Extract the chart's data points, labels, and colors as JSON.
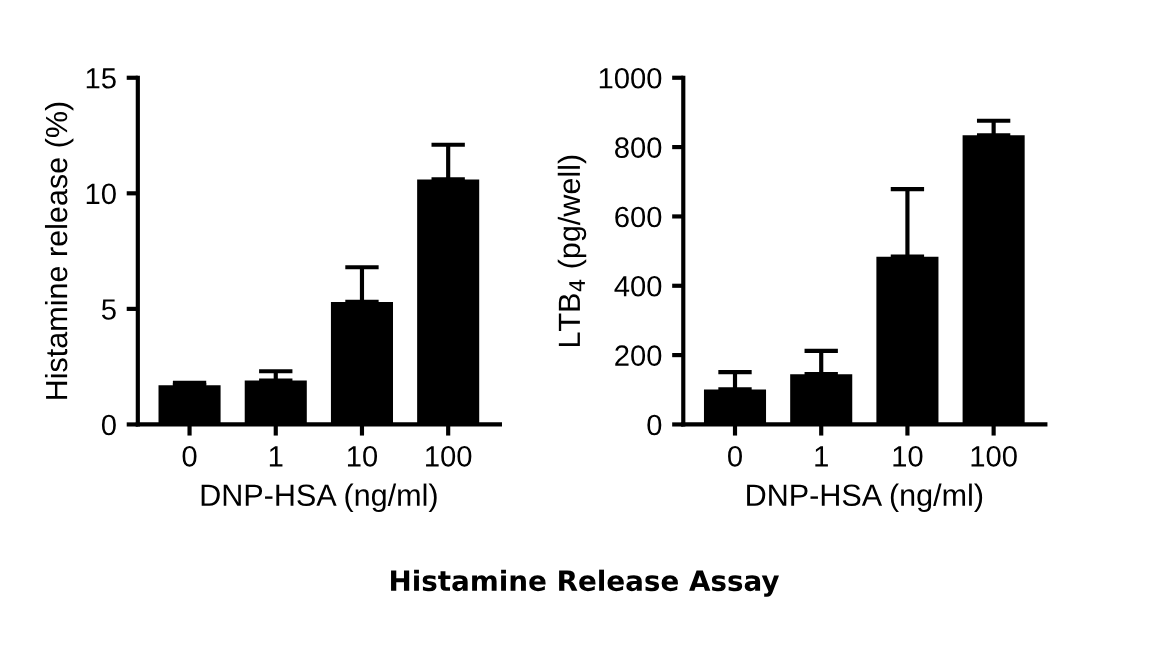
{
  "chart_data": [
    {
      "type": "bar",
      "categories": [
        "0",
        "1",
        "10",
        "100"
      ],
      "values": [
        1.7,
        1.9,
        5.3,
        10.6
      ],
      "errors": [
        [
          1.7,
          1.8
        ],
        [
          1.9,
          2.3
        ],
        [
          5.3,
          6.8
        ],
        [
          10.6,
          12.1
        ]
      ],
      "color": "#000000",
      "xlabel": "DNP-HSA (ng/ml)",
      "ylabel": "Histamine release (%)",
      "ylim": [
        0,
        15
      ],
      "yticks": [
        0,
        5,
        10,
        15
      ],
      "annotations": [
        "Histamine Release Assay"
      ]
    },
    {
      "type": "bar",
      "categories": [
        "0",
        "1",
        "10",
        "100"
      ],
      "values": [
        101,
        145,
        484,
        834
      ],
      "errors": [
        [
          101,
          151
        ],
        [
          145,
          212
        ],
        [
          484,
          679
        ],
        [
          834,
          876
        ]
      ],
      "color": "#000000",
      "xlabel": "DNP-HSA (ng/ml)",
      "ylabel": "LTB$_{4}$ (pg/well)",
      "ylim": [
        0,
        1000
      ],
      "yticks": [
        0,
        200,
        400,
        600,
        800,
        1000
      ]
    }
  ]
}
